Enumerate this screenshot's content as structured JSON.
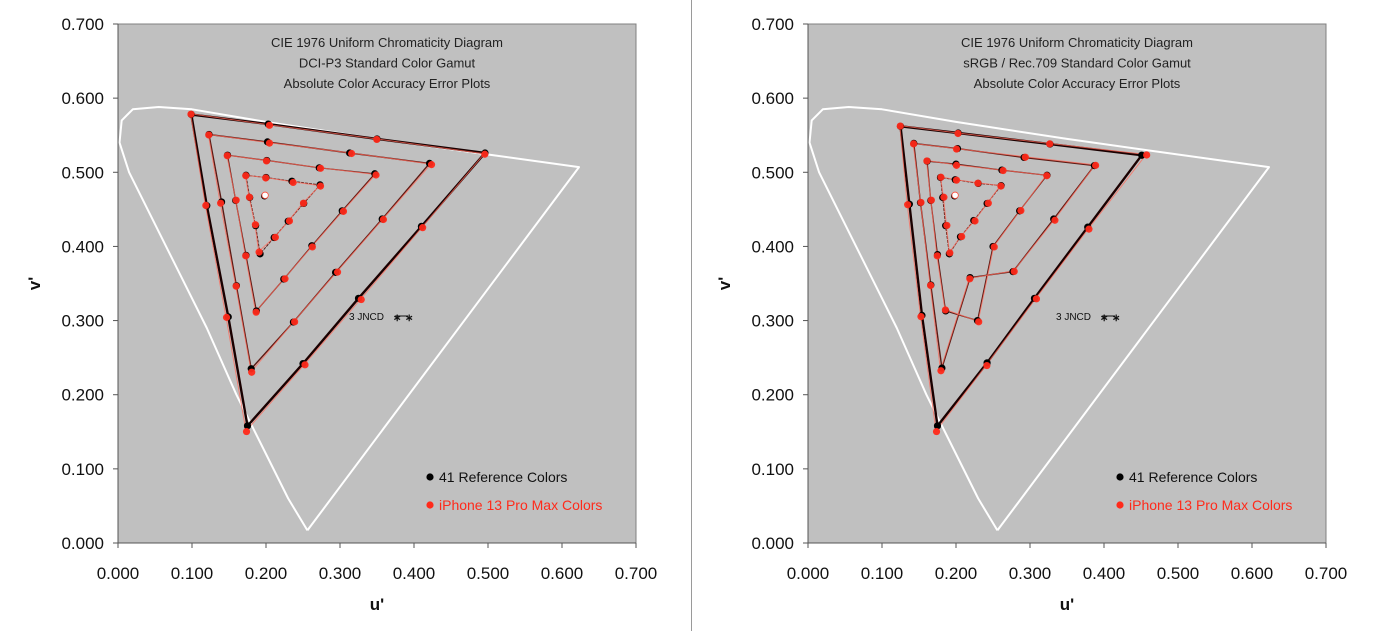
{
  "chart_data": [
    {
      "type": "scatter",
      "title": [
        "CIE 1976 Uniform Chromaticity Diagram",
        "DCI-P3 Standard Color Gamut",
        "Absolute Color Accuracy Error Plots"
      ],
      "xlabel": "u'",
      "ylabel": "v'",
      "xlim": [
        0,
        0.7
      ],
      "ylim": [
        0,
        0.7
      ],
      "xticks": [
        "0.000",
        "0.100",
        "0.200",
        "0.300",
        "0.400",
        "0.500",
        "0.600",
        "0.700"
      ],
      "yticks": [
        "0.000",
        "0.100",
        "0.200",
        "0.300",
        "0.400",
        "0.500",
        "0.600",
        "0.700"
      ],
      "grid": false,
      "annotation": "3 JNCD",
      "legend": {
        "placement": "bottom-right",
        "entries": [
          {
            "label": "41 Reference Colors",
            "color": "#000000"
          },
          {
            "label": "iPhone 13 Pro Max Colors",
            "color": "#ff2a1a"
          }
        ]
      },
      "white_point": [
        0.198,
        0.468
      ],
      "series": [
        {
          "name": "41 Reference Colors",
          "color": "#000000",
          "rings": [
            [
              [
                0.496,
                0.526
              ],
              [
                0.35,
                0.545
              ],
              [
                0.203,
                0.565
              ],
              [
                0.099,
                0.578
              ],
              [
                0.12,
                0.455
              ],
              [
                0.149,
                0.305
              ],
              [
                0.175,
                0.158
              ],
              [
                0.25,
                0.242
              ],
              [
                0.325,
                0.33
              ],
              [
                0.41,
                0.427
              ]
            ],
            [
              [
                0.421,
                0.512
              ],
              [
                0.313,
                0.526
              ],
              [
                0.202,
                0.541
              ],
              [
                0.123,
                0.551
              ],
              [
                0.14,
                0.46
              ],
              [
                0.16,
                0.347
              ],
              [
                0.18,
                0.235
              ],
              [
                0.237,
                0.298
              ],
              [
                0.294,
                0.365
              ],
              [
                0.357,
                0.437
              ]
            ],
            [
              [
                0.347,
                0.498
              ],
              [
                0.272,
                0.506
              ],
              [
                0.201,
                0.516
              ],
              [
                0.148,
                0.523
              ],
              [
                0.159,
                0.462
              ],
              [
                0.173,
                0.388
              ],
              [
                0.187,
                0.313
              ],
              [
                0.224,
                0.356
              ],
              [
                0.262,
                0.401
              ],
              [
                0.303,
                0.448
              ]
            ],
            [
              [
                0.273,
                0.483
              ],
              [
                0.235,
                0.488
              ],
              [
                0.2,
                0.493
              ],
              [
                0.173,
                0.496
              ],
              [
                0.178,
                0.466
              ],
              [
                0.186,
                0.428
              ],
              [
                0.192,
                0.39
              ],
              [
                0.211,
                0.412
              ],
              [
                0.23,
                0.434
              ],
              [
                0.251,
                0.458
              ]
            ]
          ],
          "center": [
            0.198,
            0.468
          ]
        },
        {
          "name": "iPhone 13 Pro Max Colors",
          "color": "#ff2a1a",
          "rings": [
            [
              [
                0.495,
                0.525
              ],
              [
                0.349,
                0.545
              ],
              [
                0.204,
                0.564
              ],
              [
                0.098,
                0.579
              ],
              [
                0.118,
                0.456
              ],
              [
                0.146,
                0.305
              ],
              [
                0.173,
                0.151
              ],
              [
                0.252,
                0.241
              ],
              [
                0.328,
                0.329
              ],
              [
                0.411,
                0.426
              ]
            ],
            [
              [
                0.423,
                0.511
              ],
              [
                0.315,
                0.526
              ],
              [
                0.204,
                0.54
              ],
              [
                0.122,
                0.551
              ],
              [
                0.138,
                0.459
              ],
              [
                0.159,
                0.347
              ],
              [
                0.18,
                0.231
              ],
              [
                0.238,
                0.299
              ],
              [
                0.296,
                0.366
              ],
              [
                0.358,
                0.437
              ]
            ],
            [
              [
                0.348,
                0.497
              ],
              [
                0.273,
                0.506
              ],
              [
                0.2,
                0.516
              ],
              [
                0.147,
                0.523
              ],
              [
                0.159,
                0.463
              ],
              [
                0.172,
                0.388
              ],
              [
                0.186,
                0.312
              ],
              [
                0.225,
                0.357
              ],
              [
                0.262,
                0.4
              ],
              [
                0.304,
                0.448
              ]
            ],
            [
              [
                0.273,
                0.482
              ],
              [
                0.236,
                0.487
              ],
              [
                0.199,
                0.493
              ],
              [
                0.172,
                0.496
              ],
              [
                0.177,
                0.467
              ],
              [
                0.185,
                0.43
              ],
              [
                0.19,
                0.393
              ],
              [
                0.212,
                0.413
              ],
              [
                0.231,
                0.435
              ],
              [
                0.25,
                0.459
              ]
            ]
          ],
          "center": [
            0.198,
            0.469
          ]
        }
      ]
    },
    {
      "type": "scatter",
      "title": [
        "CIE 1976 Uniform Chromaticity Diagram",
        "sRGB / Rec.709 Standard Color Gamut",
        "Absolute Color Accuracy Error Plots"
      ],
      "xlabel": "u'",
      "ylabel": "v'",
      "xlim": [
        0,
        0.7
      ],
      "ylim": [
        0,
        0.7
      ],
      "xticks": [
        "0.000",
        "0.100",
        "0.200",
        "0.300",
        "0.400",
        "0.500",
        "0.600",
        "0.700"
      ],
      "yticks": [
        "0.000",
        "0.100",
        "0.200",
        "0.300",
        "0.400",
        "0.500",
        "0.600",
        "0.700"
      ],
      "grid": false,
      "annotation": "3 JNCD",
      "legend": {
        "placement": "bottom-right",
        "entries": [
          {
            "label": "41 Reference Colors",
            "color": "#000000"
          },
          {
            "label": "iPhone 13 Pro Max Colors",
            "color": "#ff2a1a"
          }
        ]
      },
      "white_point": [
        0.198,
        0.468
      ],
      "series": [
        {
          "name": "41 Reference Colors",
          "color": "#000000",
          "rings": [
            [
              [
                0.451,
                0.523
              ],
              [
                0.327,
                0.538
              ],
              [
                0.203,
                0.553
              ],
              [
                0.125,
                0.562
              ],
              [
                0.137,
                0.457
              ],
              [
                0.154,
                0.307
              ],
              [
                0.175,
                0.158
              ],
              [
                0.242,
                0.243
              ],
              [
                0.306,
                0.33
              ],
              [
                0.378,
                0.426
              ]
            ],
            [
              [
                0.387,
                0.509
              ],
              [
                0.292,
                0.52
              ],
              [
                0.202,
                0.532
              ],
              [
                0.143,
                0.539
              ],
              [
                0.152,
                0.459
              ],
              [
                0.166,
                0.348
              ],
              [
                0.181,
                0.236
              ],
              [
                0.219,
                0.358
              ],
              [
                0.277,
                0.366
              ],
              [
                0.332,
                0.437
              ]
            ],
            [
              [
                0.323,
                0.496
              ],
              [
                0.262,
                0.503
              ],
              [
                0.2,
                0.511
              ],
              [
                0.161,
                0.515
              ],
              [
                0.166,
                0.462
              ],
              [
                0.175,
                0.389
              ],
              [
                0.186,
                0.313
              ],
              [
                0.229,
                0.3
              ],
              [
                0.25,
                0.4
              ],
              [
                0.286,
                0.448
              ]
            ],
            [
              [
                0.261,
                0.482
              ],
              [
                0.23,
                0.485
              ],
              [
                0.199,
                0.49
              ],
              [
                0.179,
                0.493
              ],
              [
                0.182,
                0.466
              ],
              [
                0.186,
                0.428
              ],
              [
                0.191,
                0.39
              ],
              [
                0.206,
                0.413
              ],
              [
                0.224,
                0.435
              ],
              [
                0.242,
                0.458
              ]
            ]
          ],
          "center": [
            0.198,
            0.468
          ]
        },
        {
          "name": "iPhone 13 Pro Max Colors",
          "color": "#ff2a1a",
          "rings": [
            [
              [
                0.457,
                0.524
              ],
              [
                0.326,
                0.539
              ],
              [
                0.202,
                0.553
              ],
              [
                0.124,
                0.563
              ],
              [
                0.134,
                0.457
              ],
              [
                0.152,
                0.306
              ],
              [
                0.173,
                0.151
              ],
              [
                0.241,
                0.24
              ],
              [
                0.308,
                0.33
              ],
              [
                0.379,
                0.424
              ]
            ],
            [
              [
                0.388,
                0.51
              ],
              [
                0.293,
                0.521
              ],
              [
                0.2,
                0.532
              ],
              [
                0.142,
                0.539
              ],
              [
                0.152,
                0.46
              ],
              [
                0.165,
                0.348
              ],
              [
                0.179,
                0.233
              ],
              [
                0.218,
                0.357
              ],
              [
                0.278,
                0.367
              ],
              [
                0.333,
                0.436
              ]
            ],
            [
              [
                0.322,
                0.496
              ],
              [
                0.263,
                0.503
              ],
              [
                0.2,
                0.51
              ],
              [
                0.16,
                0.516
              ],
              [
                0.166,
                0.463
              ],
              [
                0.174,
                0.388
              ],
              [
                0.185,
                0.315
              ],
              [
                0.23,
                0.299
              ],
              [
                0.251,
                0.4
              ],
              [
                0.287,
                0.449
              ]
            ],
            [
              [
                0.26,
                0.482
              ],
              [
                0.229,
                0.486
              ],
              [
                0.2,
                0.49
              ],
              [
                0.179,
                0.494
              ],
              [
                0.183,
                0.467
              ],
              [
                0.187,
                0.429
              ],
              [
                0.191,
                0.392
              ],
              [
                0.207,
                0.414
              ],
              [
                0.225,
                0.435
              ],
              [
                0.243,
                0.459
              ]
            ]
          ],
          "center": [
            0.198,
            0.469
          ]
        }
      ]
    }
  ],
  "spectral_locus": [
    [
      0.256,
      0.017
    ],
    [
      0.23,
      0.06
    ],
    [
      0.2,
      0.12
    ],
    [
      0.16,
      0.2
    ],
    [
      0.12,
      0.29
    ],
    [
      0.08,
      0.37
    ],
    [
      0.045,
      0.44
    ],
    [
      0.015,
      0.5
    ],
    [
      0.002,
      0.54
    ],
    [
      0.005,
      0.57
    ],
    [
      0.02,
      0.585
    ],
    [
      0.055,
      0.588
    ],
    [
      0.1,
      0.585
    ],
    [
      0.2,
      0.568
    ],
    [
      0.35,
      0.545
    ],
    [
      0.5,
      0.524
    ],
    [
      0.623,
      0.507
    ],
    [
      0.256,
      0.017
    ]
  ]
}
